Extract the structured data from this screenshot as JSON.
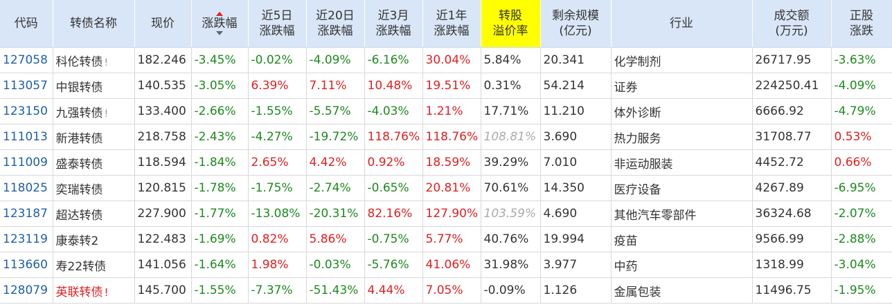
{
  "headers": {
    "code": "代码",
    "name": "转债名称",
    "price": "现价",
    "chg": "涨跌幅",
    "chg5": [
      "近5日",
      "涨跌幅"
    ],
    "chg20": [
      "近20日",
      "涨跌幅"
    ],
    "chg3m": [
      "近3月",
      "涨跌幅"
    ],
    "chg1y": [
      "近1年",
      "涨跌幅"
    ],
    "premium": [
      "转股",
      "溢价率"
    ],
    "scale": [
      "剩余规模",
      "(亿元)"
    ],
    "industry": "行业",
    "volume": [
      "成交额",
      "(万元)"
    ],
    "stock_chg": [
      "正股",
      "涨跌"
    ]
  },
  "colors": {
    "up": "#e02020",
    "down": "#1d8a1d",
    "header_bg": "#d9e6f7",
    "highlight": "#ffff00",
    "code": "#1f5fa8"
  },
  "rows": [
    {
      "code": "127058",
      "name": "科伦转债",
      "flag": "!",
      "flag_red": false,
      "name_red": false,
      "price": "182.246",
      "chg": "-3.45%",
      "chg_dir": "down",
      "c5": "-0.02%",
      "c5_dir": "down",
      "c20": "-4.09%",
      "c20_dir": "down",
      "c3m": "-6.16%",
      "c3m_dir": "down",
      "c1y": "30.04%",
      "c1y_dir": "up",
      "premium": "5.84%",
      "premium_gray": false,
      "scale": "20.341",
      "industry": "化学制剂",
      "volume": "26717.95",
      "schg": "-3.63%",
      "schg_dir": "down"
    },
    {
      "code": "113057",
      "name": "中银转债",
      "flag": "",
      "flag_red": false,
      "name_red": false,
      "price": "140.535",
      "chg": "-3.05%",
      "chg_dir": "down",
      "c5": "6.39%",
      "c5_dir": "up",
      "c20": "7.11%",
      "c20_dir": "up",
      "c3m": "10.48%",
      "c3m_dir": "up",
      "c1y": "19.51%",
      "c1y_dir": "up",
      "premium": "0.31%",
      "premium_gray": false,
      "scale": "54.214",
      "industry": "证券",
      "volume": "224250.41",
      "schg": "-4.09%",
      "schg_dir": "down"
    },
    {
      "code": "123150",
      "name": "九强转债",
      "flag": "!",
      "flag_red": false,
      "name_red": false,
      "price": "133.400",
      "chg": "-2.66%",
      "chg_dir": "down",
      "c5": "-1.55%",
      "c5_dir": "down",
      "c20": "-5.57%",
      "c20_dir": "down",
      "c3m": "-4.03%",
      "c3m_dir": "down",
      "c1y": "1.21%",
      "c1y_dir": "up",
      "premium": "17.71%",
      "premium_gray": false,
      "scale": "11.210",
      "industry": "体外诊断",
      "volume": "6666.92",
      "schg": "-4.79%",
      "schg_dir": "down"
    },
    {
      "code": "111013",
      "name": "新港转债",
      "flag": "",
      "flag_red": false,
      "name_red": false,
      "price": "218.758",
      "chg": "-2.43%",
      "chg_dir": "down",
      "c5": "-4.27%",
      "c5_dir": "down",
      "c20": "-19.72%",
      "c20_dir": "down",
      "c3m": "118.76%",
      "c3m_dir": "up",
      "c1y": "118.76%",
      "c1y_dir": "up",
      "premium": "108.81%",
      "premium_gray": true,
      "scale": "3.690",
      "industry": "热力服务",
      "volume": "31708.77",
      "schg": "0.53%",
      "schg_dir": "up"
    },
    {
      "code": "111009",
      "name": "盛泰转债",
      "flag": "",
      "flag_red": false,
      "name_red": false,
      "price": "118.594",
      "chg": "-1.84%",
      "chg_dir": "down",
      "c5": "2.65%",
      "c5_dir": "up",
      "c20": "4.42%",
      "c20_dir": "up",
      "c3m": "0.92%",
      "c3m_dir": "up",
      "c1y": "18.59%",
      "c1y_dir": "up",
      "premium": "39.29%",
      "premium_gray": false,
      "scale": "7.010",
      "industry": "非运动服装",
      "volume": "4452.72",
      "schg": "0.66%",
      "schg_dir": "up"
    },
    {
      "code": "118025",
      "name": "奕瑞转债",
      "flag": "",
      "flag_red": false,
      "name_red": false,
      "price": "120.815",
      "chg": "-1.78%",
      "chg_dir": "down",
      "c5": "-1.75%",
      "c5_dir": "down",
      "c20": "-2.74%",
      "c20_dir": "down",
      "c3m": "-0.65%",
      "c3m_dir": "down",
      "c1y": "20.81%",
      "c1y_dir": "up",
      "premium": "70.61%",
      "premium_gray": false,
      "scale": "14.350",
      "industry": "医疗设备",
      "volume": "4267.89",
      "schg": "-6.95%",
      "schg_dir": "down"
    },
    {
      "code": "123187",
      "name": "超达转债",
      "flag": "",
      "flag_red": false,
      "name_red": false,
      "price": "227.900",
      "chg": "-1.77%",
      "chg_dir": "down",
      "c5": "-13.08%",
      "c5_dir": "down",
      "c20": "-20.31%",
      "c20_dir": "down",
      "c3m": "82.16%",
      "c3m_dir": "up",
      "c1y": "127.90%",
      "c1y_dir": "up",
      "premium": "103.59%",
      "premium_gray": true,
      "scale": "4.690",
      "industry": "其他汽车零部件",
      "volume": "36324.68",
      "schg": "-2.07%",
      "schg_dir": "down"
    },
    {
      "code": "123119",
      "name": "康泰转2",
      "flag": "",
      "flag_red": false,
      "name_red": false,
      "price": "122.483",
      "chg": "-1.69%",
      "chg_dir": "down",
      "c5": "0.82%",
      "c5_dir": "up",
      "c20": "5.86%",
      "c20_dir": "up",
      "c3m": "-0.75%",
      "c3m_dir": "down",
      "c1y": "5.77%",
      "c1y_dir": "up",
      "premium": "40.76%",
      "premium_gray": false,
      "scale": "19.994",
      "industry": "疫苗",
      "volume": "9566.99",
      "schg": "-2.88%",
      "schg_dir": "down"
    },
    {
      "code": "113660",
      "name": "寿22转债",
      "flag": "",
      "flag_red": false,
      "name_red": false,
      "price": "141.056",
      "chg": "-1.64%",
      "chg_dir": "down",
      "c5": "1.98%",
      "c5_dir": "up",
      "c20": "-0.03%",
      "c20_dir": "down",
      "c3m": "-5.76%",
      "c3m_dir": "down",
      "c1y": "41.06%",
      "c1y_dir": "up",
      "premium": "31.98%",
      "premium_gray": false,
      "scale": "3.977",
      "industry": "中药",
      "volume": "1318.99",
      "schg": "-3.04%",
      "schg_dir": "down"
    },
    {
      "code": "128079",
      "name": "英联转债",
      "flag": "!",
      "flag_red": true,
      "name_red": true,
      "price": "145.700",
      "chg": "-1.55%",
      "chg_dir": "down",
      "c5": "-7.37%",
      "c5_dir": "down",
      "c20": "-51.43%",
      "c20_dir": "down",
      "c3m": "4.44%",
      "c3m_dir": "up",
      "c1y": "7.05%",
      "c1y_dir": "up",
      "premium": "-0.09%",
      "premium_gray": false,
      "scale": "1.126",
      "industry": "金属包装",
      "volume": "11496.75",
      "schg": "-1.95%",
      "schg_dir": "down"
    }
  ]
}
